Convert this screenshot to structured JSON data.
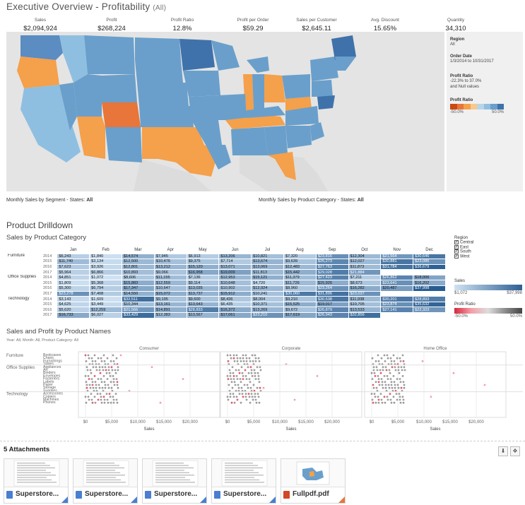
{
  "header": {
    "title": "Executive Overview - Profitability",
    "filter": "(All)"
  },
  "kpis": [
    {
      "label": "Sales",
      "value": "$2,094,924"
    },
    {
      "label": "Profit",
      "value": "$268,224"
    },
    {
      "label": "Profit Ratio",
      "value": "12.8%"
    },
    {
      "label": "Profit per Order",
      "value": "$59.29"
    },
    {
      "label": "Sales per Customer",
      "value": "$2,645.11"
    },
    {
      "label": "Avg. Discount",
      "value": "15.65%"
    },
    {
      "label": "Quantity",
      "value": "34,310"
    }
  ],
  "sidebar": {
    "region_h": "Region",
    "region_v": "All",
    "date_h": "Order Date",
    "date_v": "1/3/2014 to 10/31/2017",
    "ratio_h": "Profit Ratio",
    "ratio_v": "-22.3% to 37.0%",
    "ratio_v2": "and Null values",
    "legend_h": "Profit Ratio",
    "legend_min": "-50.0%",
    "legend_max": "50.0%"
  },
  "captions": {
    "seg_prefix": "Monthly Sales by Segment - States: ",
    "seg_val": "All",
    "cat_prefix": "Monthly Sales by Product Category - States: ",
    "cat_val": "All"
  },
  "drilldown": {
    "title": "Product Drilldown",
    "subtitle": "Sales by Product Category",
    "months": [
      "Jan",
      "Feb",
      "Mar",
      "Apr",
      "May",
      "Jun",
      "Jul",
      "Aug",
      "Sep",
      "Oct",
      "Nov",
      "Dec"
    ],
    "groups": [
      {
        "name": "Furniture",
        "rows": [
          {
            "year": "2014",
            "cells": [
              "$6,243",
              "$1,840",
              "$14,574",
              "$7,945",
              "$6,913",
              "$13,206",
              "$10,821",
              "$7,320",
              "$23,816",
              "$12,304",
              "$21,564",
              "$30,646"
            ]
          },
          {
            "year": "2015",
            "cells": [
              "$11,740",
              "$3,134",
              "$12,500",
              "$10,476",
              "$9,375",
              "$7,714",
              "$13,674",
              "$9,639",
              "$26,273",
              "$12,027",
              "$30,881",
              "$23,086"
            ]
          },
          {
            "year": "2016",
            "cells": [
              "$7,623",
              "$3,926",
              "$12,801",
              "$13,212",
              "$15,120",
              "$13,071",
              "$13,069",
              "$12,483",
              "$27,763",
              "$11,873",
              "$31,784",
              "$36,679"
            ]
          },
          {
            "year": "2017",
            "cells": [
              "$5,964",
              "$6,866",
              "$10,893",
              "$9,066",
              "$16,958",
              "$19,009",
              "$11,813",
              "$15,442",
              "$29,028",
              "$21,884",
              "",
              ""
            ]
          }
        ]
      },
      {
        "name": "Office Supplies",
        "rows": [
          {
            "year": "2014",
            "cells": [
              "$4,851",
              "$1,072",
              "$8,606",
              "$11,155",
              "$7,136",
              "$12,953",
              "$15,121",
              "$11,379",
              "$27,423",
              "$7,211",
              "$26,862",
              "$18,006"
            ]
          },
          {
            "year": "2015",
            "cells": [
              "$1,809",
              "$5,368",
              "$15,883",
              "$12,559",
              "$9,114",
              "$10,648",
              "$4,720",
              "$11,726",
              "$15,926",
              "$8,673",
              "$23,641",
              "$16,202"
            ]
          },
          {
            "year": "2016",
            "cells": [
              "$5,300",
              "$6,794",
              "$17,347",
              "$10,647",
              "$13,035",
              "$10,902",
              "$12,924",
              "$8,960",
              "$23,264",
              "$16,282",
              "$20,487",
              "$37,998"
            ]
          },
          {
            "year": "2017",
            "cells": [
              "$23,278",
              "$7,408",
              "$14,550",
              "$15,072",
              "$13,737",
              "$15,912",
              "$10,241",
              "$30,060",
              "$31,896",
              "$23,037",
              "",
              ""
            ]
          }
        ]
      },
      {
        "name": "Technology",
        "rows": [
          {
            "year": "2014",
            "cells": [
              "$3,143",
              "$1,609",
              "$32,511",
              "$9,195",
              "$9,600",
              "$8,436",
              "$8,004",
              "$9,210",
              "$30,538",
              "$11,938",
              "$30,201",
              "$28,893"
            ]
          },
          {
            "year": "2015",
            "cells": [
              "$4,625",
              "$3,449",
              "$10,344",
              "$13,161",
              "$13,643",
              "$6,435",
              "$10,371",
              "$15,525",
              "$19,017",
              "$10,705",
              "$23,874",
              "$35,632"
            ]
          },
          {
            "year": "2016",
            "cells": [
              "$5,620",
              "$12,259",
              "$21,566",
              "$14,891",
              "$28,833",
              "$16,372",
              "$13,269",
              "$9,672",
              "$26,879",
              "$13,533",
              "$27,141",
              "$22,323"
            ]
          },
          {
            "year": "2017",
            "cells": [
              "$16,733",
              "$6,027",
              "$33,429",
              "$12,383",
              "$13,567",
              "$17,061",
              "$23,210",
              "$17,619",
              "$26,943",
              "$32,856",
              "",
              ""
            ]
          }
        ]
      }
    ],
    "region_legend": {
      "title": "Region",
      "items": [
        "Central",
        "East",
        "South",
        "West"
      ]
    },
    "sales_legend": {
      "title": "Sales",
      "min": "$1,072",
      "max": "$37,998"
    },
    "pr_legend": {
      "title": "Profit Ratio",
      "min": "-50.0%",
      "max": "50.0%"
    }
  },
  "scatter": {
    "title": "Sales and Profit by Product Names",
    "filters": "Year: All, Month: All, Product Category: All",
    "segments": [
      "Consumer",
      "Corporate",
      "Home Office"
    ],
    "categories": [
      {
        "name": "Furniture",
        "subs": [
          "Bookcases",
          "Chairs",
          "Furnishings",
          "Tables"
        ]
      },
      {
        "name": "Office Supplies",
        "subs": [
          "Appliances",
          "Art",
          "Binders",
          "Envelopes",
          "Fasteners",
          "Labels",
          "Paper",
          "Storage",
          "Supplies"
        ]
      },
      {
        "name": "Technology",
        "subs": [
          "Accessories",
          "Copiers",
          "Machines",
          "Phones"
        ]
      }
    ],
    "ticks": [
      "$0",
      "$5,000",
      "$10,000",
      "$15,000",
      "$20,000"
    ],
    "xlabel": "Sales"
  },
  "attachments": {
    "title": "5 Attachments",
    "items": [
      {
        "name": "Superstore...",
        "type": "xls"
      },
      {
        "name": "Superstore...",
        "type": "xls"
      },
      {
        "name": "Superstore...",
        "type": "xls"
      },
      {
        "name": "Superstore...",
        "type": "xls"
      },
      {
        "name": "Fullpdf.pdf",
        "type": "pdf"
      }
    ],
    "download_icon": "download-icon",
    "box_icon": "dropbox-icon"
  },
  "colors": {
    "blue_dark": "#2e5f95",
    "blue": "#6a9fcb",
    "blue_light": "#b8d4ea",
    "orange": "#f5a04a",
    "orange_dark": "#e8753a"
  }
}
